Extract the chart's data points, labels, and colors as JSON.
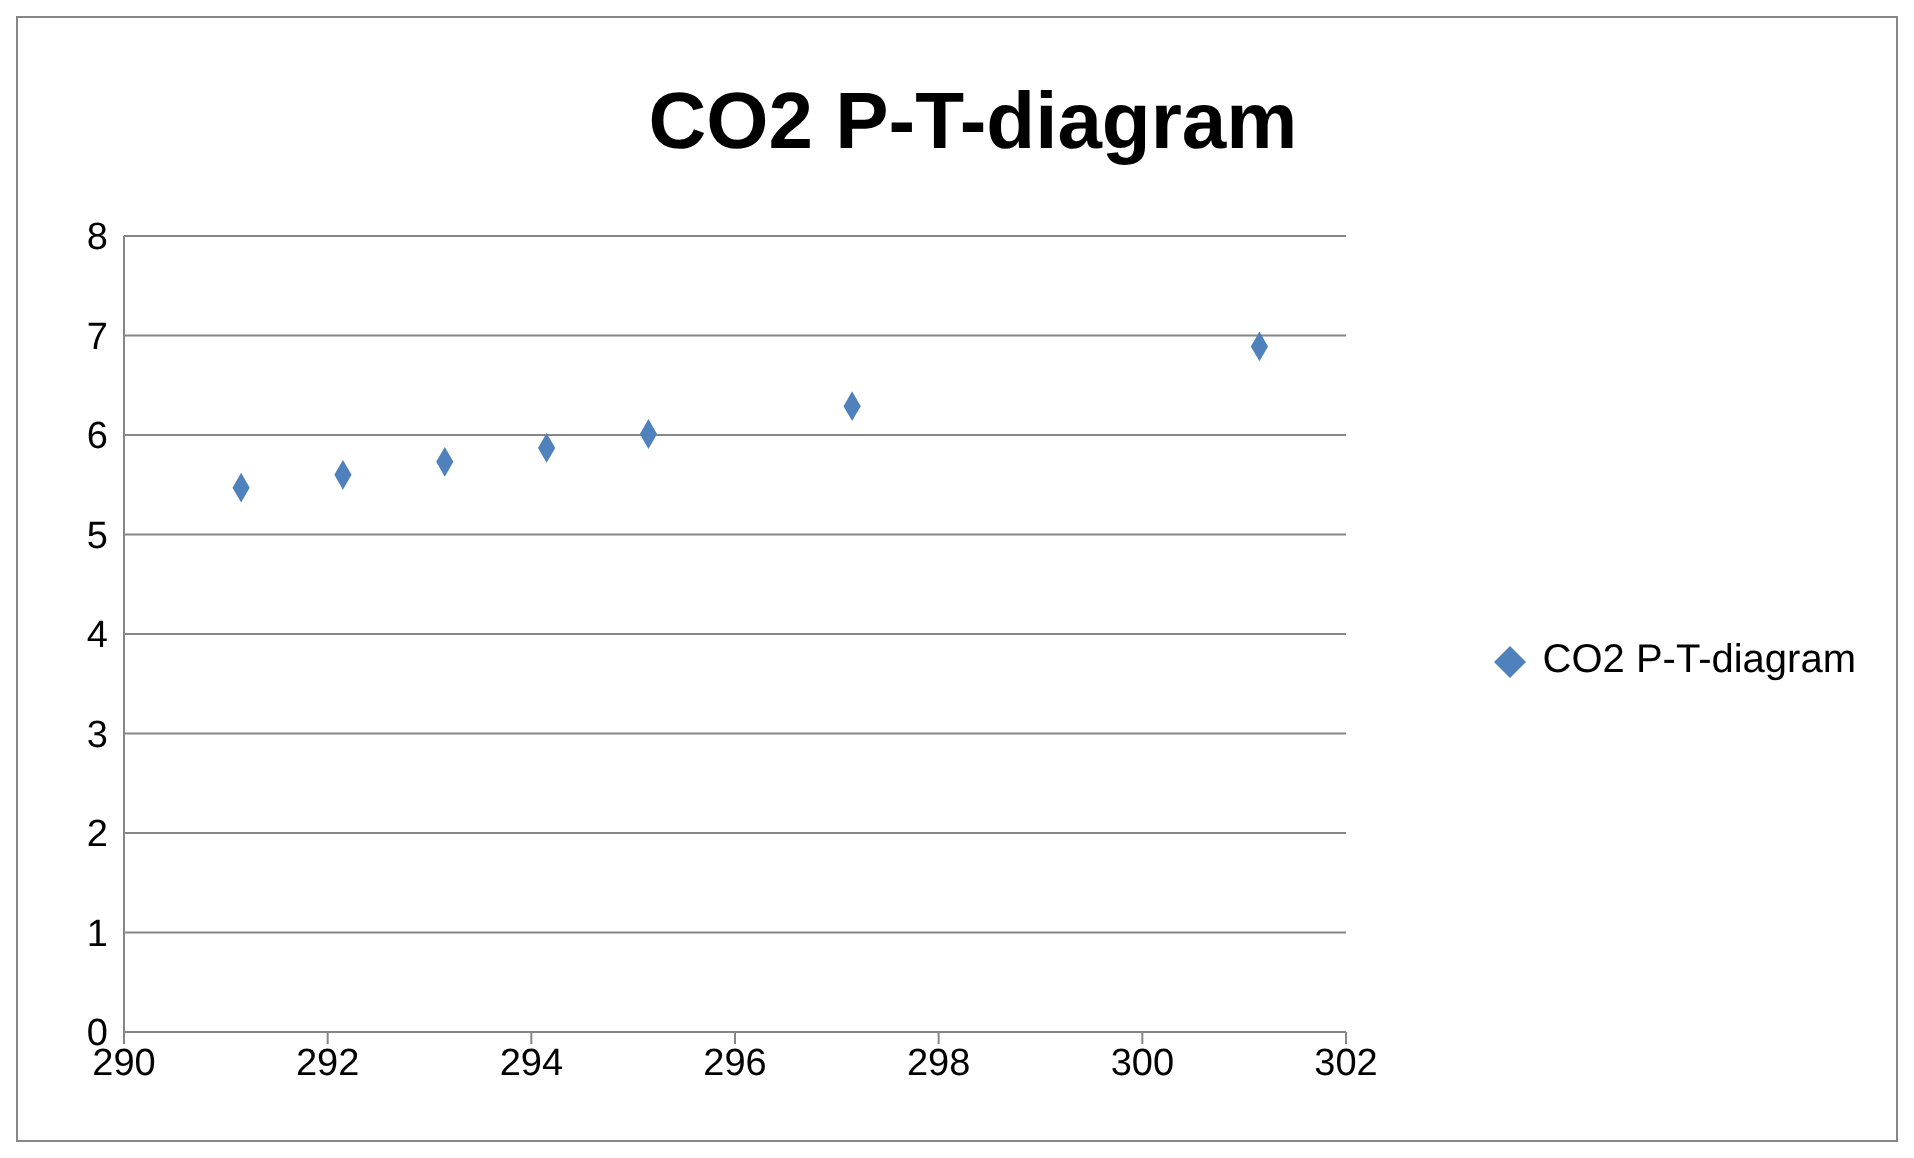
{
  "chart_data": {
    "type": "scatter",
    "title": "CO2 P-T-diagram",
    "x": [
      291.15,
      292.15,
      293.15,
      294.15,
      295.15,
      297.15,
      301.15
    ],
    "series": [
      {
        "name": "CO2 P-T-diagram",
        "color": "#4f81bd",
        "values": [
          5.47,
          5.6,
          5.73,
          5.87,
          6.01,
          6.29,
          6.89
        ]
      }
    ],
    "xlim": [
      290,
      302
    ],
    "xticks": [
      290,
      292,
      294,
      296,
      298,
      300,
      302
    ],
    "ylim": [
      0,
      8
    ],
    "yticks": [
      0,
      1,
      2,
      3,
      4,
      5,
      6,
      7,
      8
    ],
    "grid": "y",
    "legend": "right",
    "marker": "diamond"
  }
}
